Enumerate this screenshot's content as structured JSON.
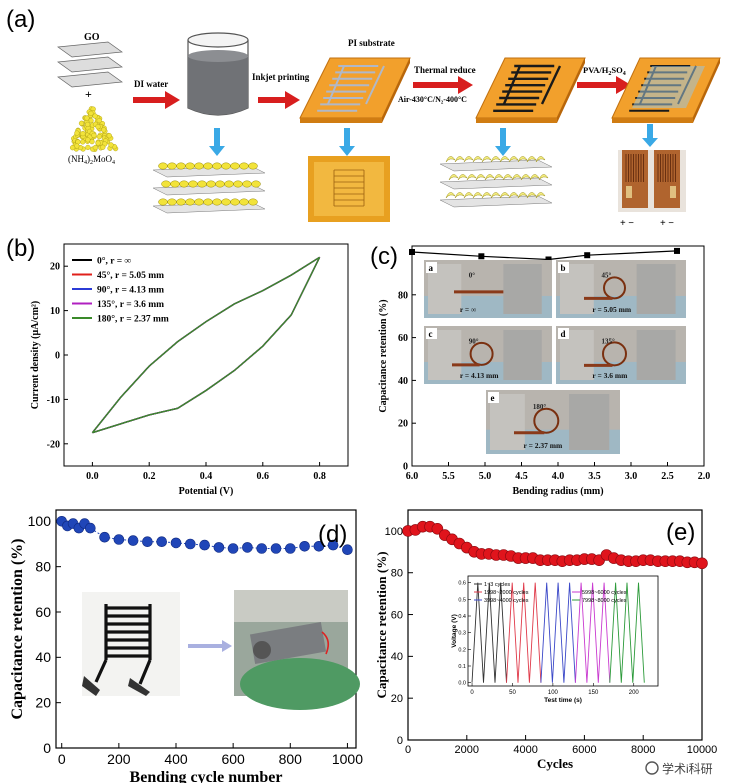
{
  "schematic": {
    "label": "(a)",
    "go": "GO",
    "plus": "+",
    "precursor": "(NH",
    "precursor_sub": "4",
    "precursor_tail": ")",
    "precursor_sub2": "2",
    "precursor_end": "MoO",
    "precursor_sub3": "4",
    "di_water": "DI water",
    "inkjet": "Inkjet printing",
    "pi_substrate": "PI substrate",
    "thermal": "Thermal reduce",
    "thermal_cond": "Air-430°C/N₂-400°C",
    "electrolyte": "PVA/H",
    "electrolyte_sub": "2",
    "electrolyte_end": "SO",
    "electrolyte_sub2": "4",
    "pm_left": "+  −",
    "pm_right": "+  −"
  },
  "chart_data": [
    {
      "id": "b",
      "type": "line",
      "panel_label": "(b)",
      "xlabel": "Potential (V)",
      "ylabel": "Current density (μA/cm²)",
      "xlim": [
        -0.1,
        0.9
      ],
      "ylim": [
        -25,
        25
      ],
      "xticks": [
        "0.0",
        "0.2",
        "0.4",
        "0.6",
        "0.8"
      ],
      "yticks": [
        "20",
        "10",
        "0",
        "-10",
        "-20"
      ],
      "legend": [
        "0°, r = ∞",
        "45°, r = 5.05 mm",
        "90°, r = 4.13 mm",
        "135°, r = 3.6 mm",
        "180°, r = 2.37 mm"
      ],
      "legend_colors": [
        "#000000",
        "#e0201b",
        "#2b3bd6",
        "#b020c0",
        "#3a8a2a"
      ],
      "upper": {
        "x": [
          0,
          0.1,
          0.2,
          0.3,
          0.4,
          0.5,
          0.6,
          0.7,
          0.8
        ],
        "y": [
          -17.5,
          -9.5,
          -2.5,
          3,
          7.5,
          11.5,
          14.5,
          18,
          22
        ]
      },
      "lower": {
        "x": [
          0,
          0.1,
          0.2,
          0.3,
          0.4,
          0.5,
          0.6,
          0.7,
          0.8
        ],
        "y": [
          -17.5,
          -15.5,
          -13.5,
          -12,
          -8,
          -3.5,
          2,
          9,
          22
        ]
      }
    },
    {
      "id": "c",
      "type": "line",
      "panel_label": "(c)",
      "xlabel": "Bending radius (mm)",
      "ylabel": "Capacitance retention (%)",
      "xlim": [
        6.0,
        2.0
      ],
      "ylim": [
        0,
        100
      ],
      "xticks": [
        "6.0",
        "5.5",
        "5.0",
        "4.5",
        "4.0",
        "3.5",
        "3.0",
        "2.5",
        "2.0"
      ],
      "yticks": [
        "80",
        "60",
        "40",
        "20",
        "0"
      ],
      "x": [
        6.0,
        5.05,
        4.13,
        3.6,
        2.37
      ],
      "y": [
        100,
        98,
        96.5,
        98.5,
        100.5
      ],
      "insets": [
        {
          "tag": "a",
          "text": "r = ∞",
          "angle": "0°"
        },
        {
          "tag": "b",
          "text": "r = 5.05 mm",
          "angle": "45°"
        },
        {
          "tag": "c",
          "text": "r = 4.13 mm",
          "angle": "90°"
        },
        {
          "tag": "d",
          "text": "r = 3.6 mm",
          "angle": "135°"
        },
        {
          "tag": "e",
          "text": "r = 2.37 mm",
          "angle": "180°"
        }
      ]
    },
    {
      "id": "d",
      "type": "scatter",
      "panel_label": "(d)",
      "xlabel": "Bending cycle number",
      "ylabel": "Capacitance retention (%)",
      "xlim": [
        -20,
        1030
      ],
      "ylim": [
        0,
        105
      ],
      "xticks": [
        "0",
        "200",
        "400",
        "600",
        "800",
        "1000"
      ],
      "yticks": [
        "100",
        "80",
        "60",
        "40",
        "20",
        "0"
      ],
      "x": [
        0,
        20,
        40,
        60,
        80,
        100,
        150,
        200,
        250,
        300,
        350,
        400,
        450,
        500,
        550,
        600,
        650,
        700,
        750,
        800,
        850,
        900,
        950,
        1000
      ],
      "y": [
        100,
        98,
        99,
        97,
        99,
        97,
        93,
        92,
        91.5,
        91,
        91,
        90.5,
        90,
        89.5,
        88.5,
        88,
        88.5,
        88,
        88,
        88,
        89,
        89,
        89.5,
        87.5
      ]
    },
    {
      "id": "e",
      "type": "scatter",
      "panel_label": "(e)",
      "xlabel": "Cycles",
      "ylabel": "Capacitance retention (%)",
      "xlim": [
        0,
        10000
      ],
      "ylim": [
        0,
        110
      ],
      "xticks": [
        "0",
        "2000",
        "4000",
        "6000",
        "8000",
        "10000"
      ],
      "yticks": [
        "100",
        "80",
        "60",
        "40",
        "20",
        "0"
      ],
      "x": [
        0,
        250,
        500,
        750,
        1000,
        1250,
        1500,
        1750,
        2000,
        2250,
        2500,
        2750,
        3000,
        3250,
        3500,
        3750,
        4000,
        4250,
        4500,
        4750,
        5000,
        5250,
        5500,
        5750,
        6000,
        6250,
        6500,
        6750,
        7000,
        7250,
        7500,
        7750,
        8000,
        8250,
        8500,
        8750,
        9000,
        9250,
        9500,
        9750,
        10000
      ],
      "y": [
        100,
        100.5,
        102,
        102,
        101,
        98,
        96,
        94,
        92,
        90,
        89,
        89,
        88.5,
        88.5,
        88,
        87,
        87,
        87,
        86,
        86,
        86,
        85.5,
        86,
        86,
        86.5,
        86.5,
        86,
        88.5,
        87,
        86,
        85.5,
        85.5,
        86,
        86,
        85.5,
        85.5,
        85.5,
        85.5,
        85,
        85,
        84.5
      ],
      "inset": {
        "xlabel": "Test time (s)",
        "ylabel": "Voltage (V)",
        "xticks": [
          "0",
          "50",
          "100",
          "150",
          "200"
        ],
        "yticks": [
          "0.6",
          "0.5",
          "0.4",
          "0.3",
          "0.2",
          "0.1",
          "0.0"
        ],
        "legend": [
          "1~3 cycles",
          "1998~2000 cycles",
          "3998~4000 cycles",
          "5998~6000 cycles",
          "7998~8000 cycles"
        ],
        "colors": [
          "#333333",
          "#e03a4a",
          "#3b48c8",
          "#c93ad0",
          "#2c9a3a"
        ]
      },
      "watermark": "学术i科研"
    }
  ]
}
